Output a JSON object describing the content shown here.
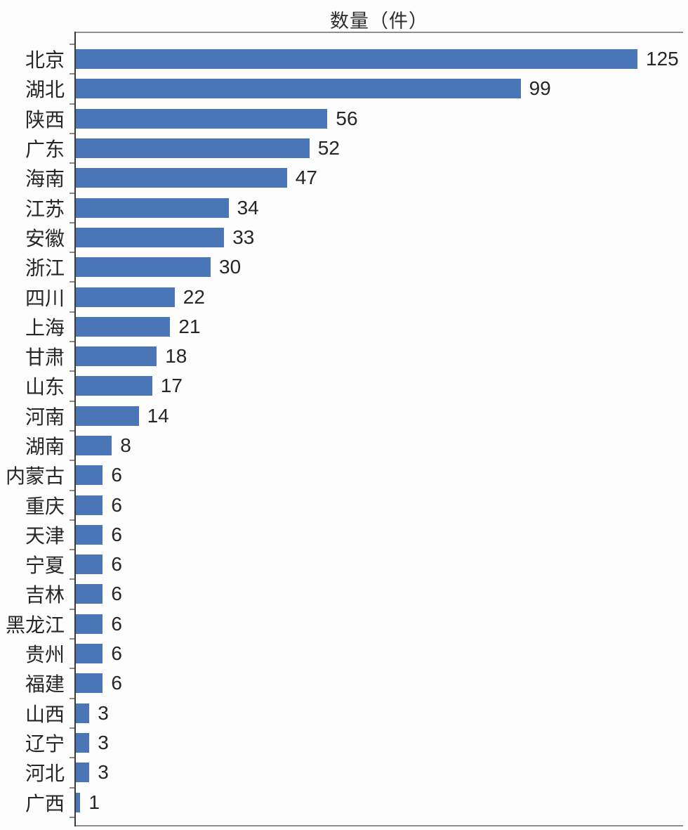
{
  "title": "数量（件）",
  "colors": {
    "bar": "#4a76b8",
    "axis_line": "#3a3a3a",
    "frame_line": "#8f8f8f",
    "text": "#262626"
  },
  "chart_data": {
    "type": "bar",
    "orientation": "horizontal",
    "title": "数量（件）",
    "categories": [
      "北京",
      "湖北",
      "陕西",
      "广东",
      "海南",
      "江苏",
      "安徽",
      "浙江",
      "四川",
      "上海",
      "甘肃",
      "山东",
      "河南",
      "湖南",
      "内蒙古",
      "重庆",
      "天津",
      "宁夏",
      "吉林",
      "黑龙江",
      "贵州",
      "福建",
      "山西",
      "辽宁",
      "河北",
      "广西"
    ],
    "values": [
      125,
      99,
      56,
      52,
      47,
      34,
      33,
      30,
      22,
      21,
      18,
      17,
      14,
      8,
      6,
      6,
      6,
      6,
      6,
      6,
      6,
      6,
      3,
      3,
      3,
      1
    ],
    "xlim": [
      0,
      135
    ],
    "value_labels": true,
    "grid": false,
    "legend": null,
    "ylabel": "",
    "xlabel": ""
  }
}
